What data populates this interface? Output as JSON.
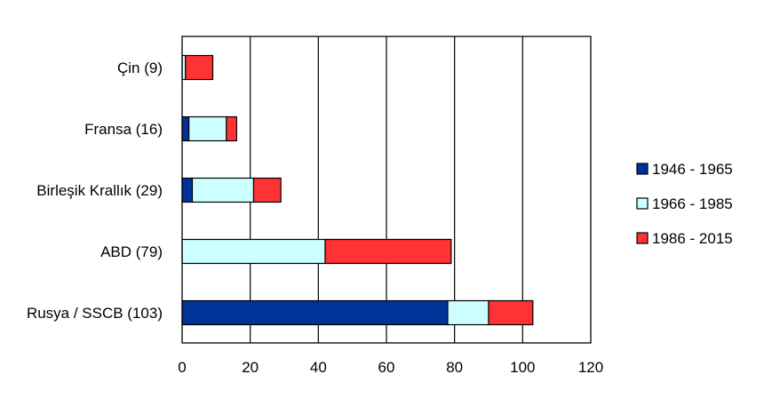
{
  "chart_data": {
    "type": "bar",
    "orientation": "horizontal",
    "stacked": true,
    "categories": [
      "Çin (9)",
      "Fransa (16)",
      "Birleşik Krallık (29)",
      "ABD (79)",
      "Rusya / SSCB (103)"
    ],
    "series": [
      {
        "name": "1946 - 1965",
        "color": "#003399",
        "values": [
          0,
          2,
          3,
          0,
          78
        ]
      },
      {
        "name": "1966 - 1985",
        "color": "#ccffff",
        "values": [
          1,
          11,
          18,
          42,
          12
        ]
      },
      {
        "name": "1986 - 2015",
        "color": "#ff3333",
        "values": [
          8,
          3,
          8,
          37,
          13
        ]
      }
    ],
    "xlim": [
      0,
      120
    ],
    "xticks": [
      "0",
      "20",
      "40",
      "60",
      "80",
      "100",
      "120"
    ],
    "grid": "vertical",
    "legend_position": "right"
  }
}
